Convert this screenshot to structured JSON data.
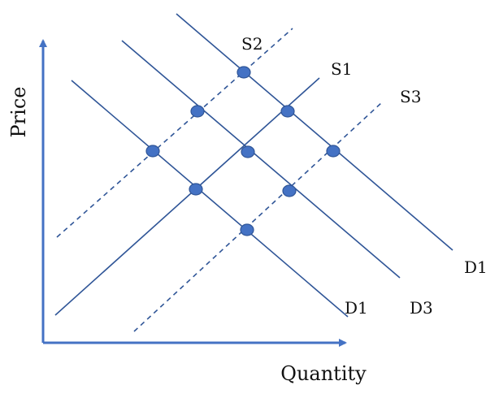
{
  "diagram": {
    "axes": {
      "x_label": "Quantity",
      "y_label": "Price",
      "color": "#4472c4"
    },
    "colors": {
      "line": "#2f5597",
      "point_fill": "#4472c4",
      "point_stroke": "#2f5597"
    },
    "supply_curves": [
      {
        "id": "s1",
        "label": "S1",
        "style": "solid"
      },
      {
        "id": "s2",
        "label": "S2",
        "style": "dashed"
      },
      {
        "id": "s3",
        "label": "S3",
        "style": "dashed"
      }
    ],
    "demand_curves": [
      {
        "id": "d1-left",
        "label": "D1",
        "style": "solid"
      },
      {
        "id": "d3",
        "label": "D3",
        "style": "solid"
      },
      {
        "id": "d1-right",
        "label": "D1",
        "style": "solid"
      }
    ],
    "equilibrium_points": [
      {
        "supply": "s2",
        "demand": "d1-left"
      },
      {
        "supply": "s2",
        "demand": "d3"
      },
      {
        "supply": "s2",
        "demand": "d1-right"
      },
      {
        "supply": "s1",
        "demand": "d1-left"
      },
      {
        "supply": "s1",
        "demand": "d3"
      },
      {
        "supply": "s1",
        "demand": "d1-right"
      },
      {
        "supply": "s3",
        "demand": "d1-left"
      },
      {
        "supply": "s3",
        "demand": "d3"
      },
      {
        "supply": "s3",
        "demand": "d1-right"
      }
    ]
  }
}
